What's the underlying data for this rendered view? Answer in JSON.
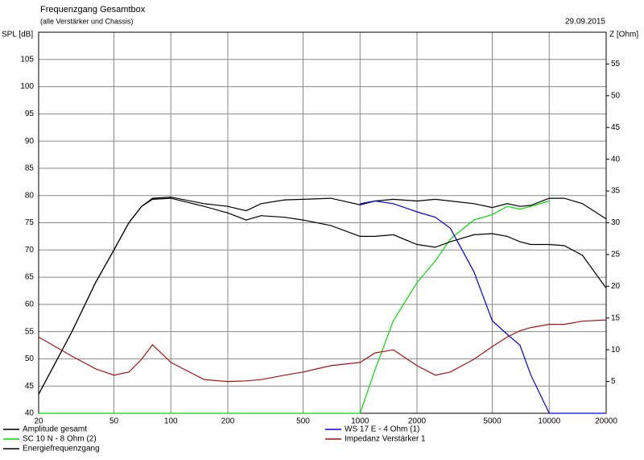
{
  "chart_data": {
    "type": "line",
    "title": "Frequenzgang Gesamtbox",
    "subtitle": "(alle Verstärker und Chassis)",
    "date": "29.09.2015",
    "y_label": "SPL [dB]",
    "y2_label": "Z [Ohm]",
    "xscale": "log",
    "grid": true,
    "x": [
      20,
      30,
      40,
      50,
      60,
      70,
      80,
      100,
      150,
      200,
      250,
      300,
      400,
      500,
      700,
      1000,
      1200,
      1500,
      2000,
      2500,
      3000,
      4000,
      5000,
      6000,
      7000,
      8000,
      10000,
      12000,
      15000,
      20000
    ],
    "xlim": [
      20,
      20000
    ],
    "xticks": [
      20,
      50,
      100,
      200,
      500,
      1000,
      2000,
      5000,
      10000,
      20000
    ],
    "ylim": [
      40,
      110
    ],
    "yticks": [
      40,
      45,
      50,
      55,
      60,
      65,
      70,
      75,
      80,
      85,
      90,
      95,
      100,
      105
    ],
    "y2lim": [
      0,
      60
    ],
    "y2ticks": [
      5,
      10,
      15,
      20,
      25,
      30,
      35,
      40,
      45,
      50,
      55
    ],
    "series": [
      {
        "name": "Amplitude gesamt",
        "color": "#000000",
        "values": [
          43.5,
          55,
          64,
          70,
          75,
          78,
          79.5,
          79.7,
          78.5,
          78,
          77.2,
          78.5,
          79.2,
          79.3,
          79.5,
          78.3,
          79,
          79.3,
          79,
          79.3,
          79,
          78.5,
          77.8,
          78.5,
          78,
          78.2,
          79.5,
          79.5,
          78.5,
          75.7
        ]
      },
      {
        "name": "SC 10 N - 8 Ohm (2)",
        "color": "#00dd00",
        "values": [
          40,
          40,
          40,
          40,
          40,
          40,
          40,
          40,
          40,
          40,
          40,
          40,
          40,
          40,
          40,
          40,
          48,
          57,
          64,
          68,
          72,
          75.5,
          76.5,
          78,
          77.5,
          78,
          79,
          null,
          null,
          null
        ]
      },
      {
        "name": "Energiefrequenzgang",
        "color": "#000000",
        "values": [
          43.5,
          55,
          64,
          70,
          75,
          78,
          79.3,
          79.5,
          78,
          76.8,
          75.5,
          76.3,
          76,
          75.5,
          74.5,
          72.5,
          72.5,
          72.8,
          71,
          70.5,
          71.5,
          72.8,
          73,
          72.5,
          71.5,
          71,
          71,
          70.8,
          69,
          63
        ]
      },
      {
        "name": "WS 17 E - 4 Ohm  (1)",
        "color": "#0000ee",
        "values": [
          null,
          null,
          null,
          null,
          null,
          null,
          null,
          null,
          null,
          null,
          null,
          null,
          null,
          null,
          null,
          78.5,
          79,
          78.5,
          77,
          76,
          74,
          66,
          57,
          54.5,
          52.5,
          47,
          40,
          40,
          40,
          40
        ]
      },
      {
        "name": "Impedanz Verstärker 1",
        "color": "#aa1111",
        "axis": "y2",
        "values": [
          12,
          9,
          7,
          6,
          6.5,
          8.5,
          10.8,
          8,
          5.3,
          5,
          5.1,
          5.3,
          6,
          6.5,
          7.5,
          8,
          9.5,
          10,
          7.5,
          6,
          6.5,
          8.5,
          10.5,
          12,
          13,
          13.5,
          14,
          14,
          14.5,
          14.7
        ]
      }
    ]
  }
}
